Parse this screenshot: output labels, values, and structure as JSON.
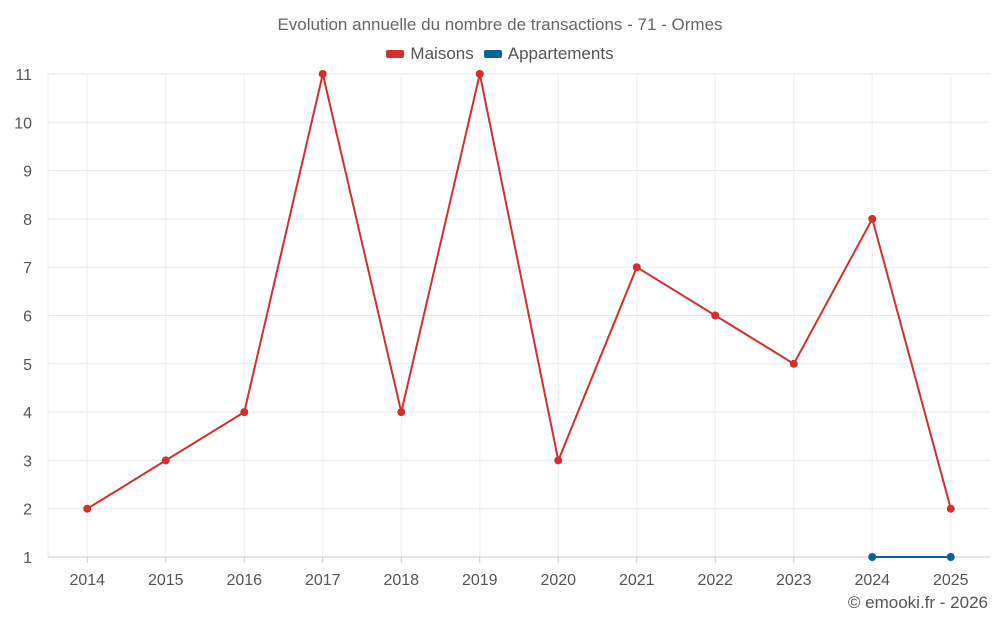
{
  "chart_data": {
    "type": "line",
    "title": "Evolution annuelle du nombre de transactions - 71 - Ormes",
    "x": [
      "2014",
      "2015",
      "2016",
      "2017",
      "2018",
      "2019",
      "2020",
      "2021",
      "2022",
      "2023",
      "2024",
      "2025"
    ],
    "ylim": [
      1,
      11
    ],
    "yticks": [
      "1",
      "2",
      "3",
      "4",
      "5",
      "6",
      "7",
      "8",
      "9",
      "10",
      "11"
    ],
    "grid": true,
    "legend": "top-center",
    "series": [
      {
        "name": "Maisons",
        "color": "#d32f2f",
        "x": [
          "2014",
          "2015",
          "2016",
          "2017",
          "2018",
          "2019",
          "2020",
          "2021",
          "2022",
          "2023",
          "2024",
          "2025"
        ],
        "values": [
          2,
          3,
          4,
          11,
          4,
          11,
          3,
          7,
          6,
          5,
          8,
          2
        ]
      },
      {
        "name": "Appartements",
        "color": "#0a6496",
        "x": [
          "2024",
          "2025"
        ],
        "values": [
          1,
          1
        ]
      }
    ]
  },
  "footer": "© emooki.fr - 2026"
}
